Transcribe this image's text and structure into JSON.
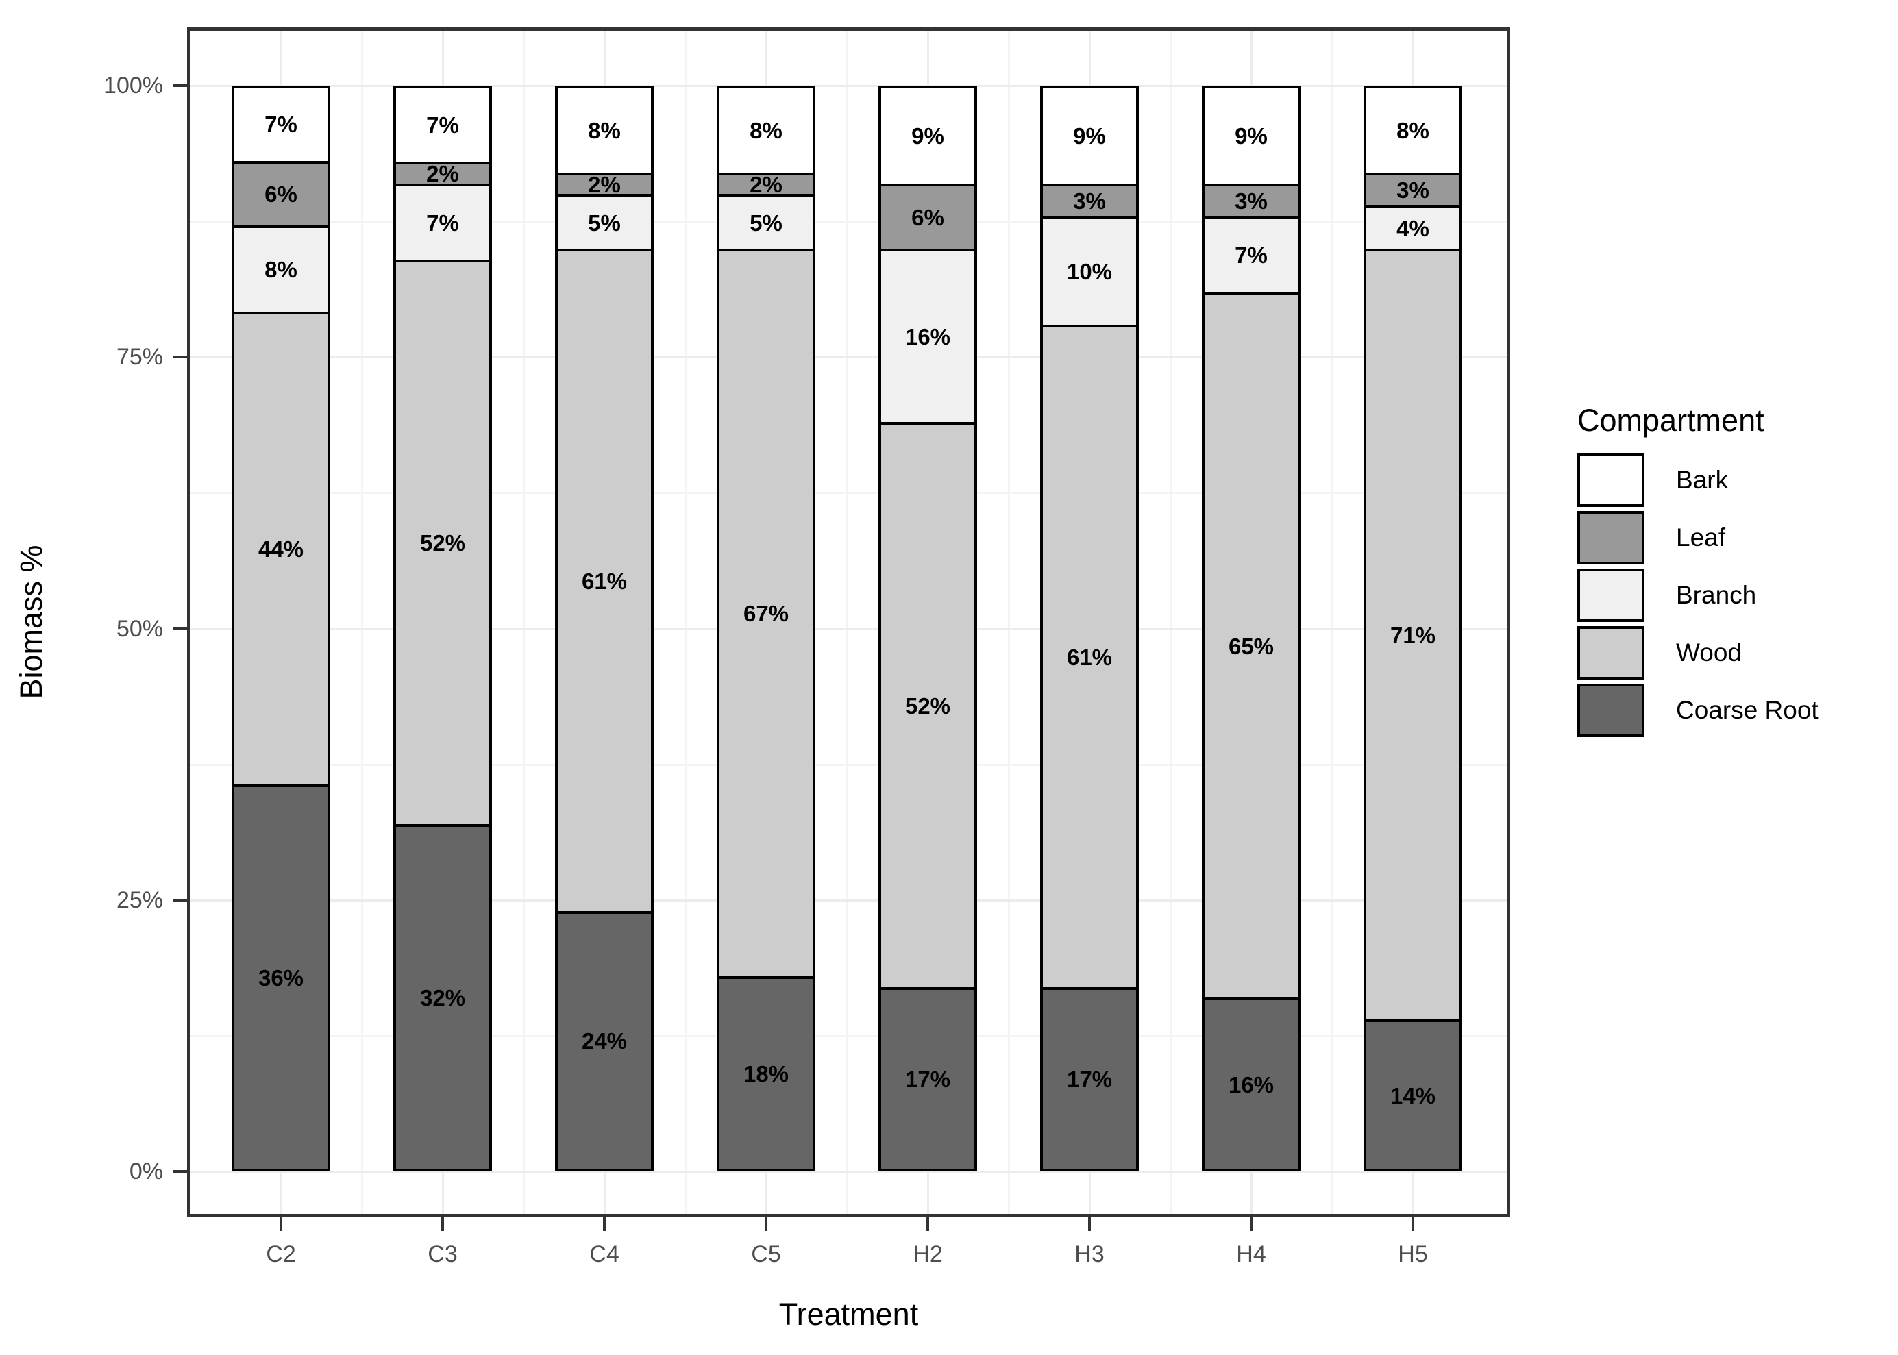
{
  "y_axis": {
    "title": "Biomass %",
    "ticks": [
      {
        "value": 0,
        "label": "0%"
      },
      {
        "value": 25,
        "label": "25%"
      },
      {
        "value": 50,
        "label": "50%"
      },
      {
        "value": 75,
        "label": "75%"
      },
      {
        "value": 100,
        "label": "100%"
      }
    ]
  },
  "x_axis": {
    "title": "Treatment",
    "categories": [
      "C2",
      "C3",
      "C4",
      "C5",
      "H2",
      "H3",
      "H4",
      "H5"
    ]
  },
  "legend": {
    "title": "Compartment",
    "items": [
      {
        "label": "Bark",
        "color": "#ffffff"
      },
      {
        "label": "Leaf",
        "color": "#999999"
      },
      {
        "label": "Branch",
        "color": "#f0f0f0"
      },
      {
        "label": "Wood",
        "color": "#cdcdcd"
      },
      {
        "label": "Coarse Root",
        "color": "#666666"
      }
    ]
  },
  "chart_data": {
    "type": "bar",
    "variant": "stacked-percent",
    "title": "",
    "xlabel": "Treatment",
    "ylabel": "Biomass %",
    "ylim": [
      0,
      100
    ],
    "grid": {
      "major_color": "#ececec",
      "minor_color": "#f4f4f4",
      "minor_step": 12.5
    },
    "legend_position": "right",
    "bar_outline_color": "#000000",
    "categories": [
      "C2",
      "C3",
      "C4",
      "C5",
      "H2",
      "H3",
      "H4",
      "H5"
    ],
    "series_top_to_bottom": [
      {
        "name": "Bark",
        "color": "#ffffff",
        "values": [
          7,
          7,
          8,
          8,
          9,
          9,
          9,
          8
        ],
        "labels": [
          "7%",
          "7%",
          "8%",
          "8%",
          "9%",
          "9%",
          "9%",
          "8%"
        ]
      },
      {
        "name": "Leaf",
        "color": "#999999",
        "values": [
          6,
          2,
          2,
          2,
          6,
          3,
          3,
          3
        ],
        "labels": [
          "6%",
          "2%",
          "2%",
          "2%",
          "6%",
          "3%",
          "3%",
          "3%"
        ]
      },
      {
        "name": "Branch",
        "color": "#f0f0f0",
        "values": [
          8,
          7,
          5,
          5,
          16,
          10,
          7,
          4
        ],
        "labels": [
          "8%",
          "7%",
          "5%",
          "5%",
          "16%",
          "10%",
          "7%",
          "4%"
        ]
      },
      {
        "name": "Wood",
        "color": "#cdcdcd",
        "values": [
          44,
          52,
          61,
          67,
          52,
          61,
          65,
          71
        ],
        "labels": [
          "44%",
          "52%",
          "61%",
          "67%",
          "52%",
          "61%",
          "65%",
          "71%"
        ]
      },
      {
        "name": "Coarse Root",
        "color": "#666666",
        "values": [
          36,
          32,
          24,
          18,
          17,
          17,
          16,
          14
        ],
        "labels": [
          "36%",
          "32%",
          "24%",
          "18%",
          "17%",
          "17%",
          "16%",
          "14%"
        ]
      }
    ]
  }
}
